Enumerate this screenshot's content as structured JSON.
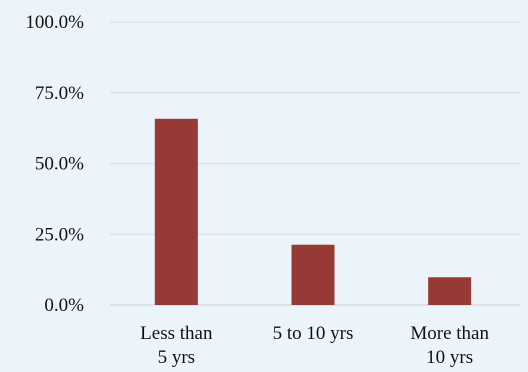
{
  "chart_data": {
    "type": "bar",
    "categories": [
      [
        "Less than",
        "5 yrs"
      ],
      [
        "5 to 10 yrs"
      ],
      [
        "More than",
        "10 yrs"
      ]
    ],
    "values": [
      65.8,
      21.3,
      9.8
    ],
    "ylim": [
      0,
      100
    ],
    "yticks": [
      0,
      25,
      50,
      75,
      100
    ],
    "ytick_labels": [
      "0.0%",
      "25.0%",
      "50.0%",
      "75.0%",
      "100.0%"
    ],
    "grid": true,
    "legend": "none",
    "colors": {
      "bar": "#963a36",
      "background": "#eaf4f9",
      "grid": "#d4dde2"
    }
  }
}
